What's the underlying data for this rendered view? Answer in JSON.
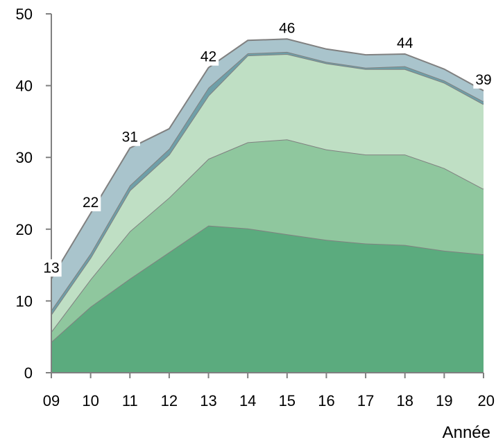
{
  "chart_data": {
    "type": "area",
    "stacked": true,
    "title": "",
    "xlabel": "Année",
    "ylabel": "",
    "ylim": [
      0,
      50
    ],
    "yticks": [
      "0",
      "10",
      "20",
      "30",
      "40",
      "50"
    ],
    "categories": [
      "09",
      "10",
      "11",
      "12",
      "13",
      "14",
      "15",
      "16",
      "17",
      "18",
      "19",
      "20"
    ],
    "grid": false,
    "legend": "none",
    "series": [
      {
        "color": "#5bab7e",
        "values": [
          4.3,
          9.2,
          13.1,
          16.8,
          20.5,
          20.1,
          19.3,
          18.5,
          18.0,
          17.8,
          17.0,
          16.5
        ]
      },
      {
        "color": "#8fc79e",
        "values": [
          1.4,
          3.8,
          6.6,
          7.6,
          9.3,
          12.0,
          13.2,
          12.6,
          12.4,
          12.6,
          11.5,
          9.1
        ]
      },
      {
        "color": "#bfdfc4",
        "values": [
          2.4,
          3.0,
          5.7,
          6.0,
          8.8,
          12.1,
          11.9,
          12.0,
          11.9,
          11.9,
          11.9,
          11.8
        ]
      },
      {
        "color": "#6e9fa8",
        "values": [
          0.6,
          0.6,
          0.7,
          0.8,
          1.1,
          0.3,
          0.3,
          0.2,
          0.2,
          0.4,
          0.3,
          0.4
        ]
      },
      {
        "color": "#a9c4cc",
        "values": [
          4.4,
          5.6,
          5.2,
          2.8,
          2.8,
          1.8,
          1.8,
          1.8,
          1.8,
          1.7,
          1.6,
          1.5
        ]
      }
    ],
    "totals": [
      {
        "x": "09",
        "label": "13"
      },
      {
        "x": "10",
        "label": "22"
      },
      {
        "x": "11",
        "label": "31"
      },
      {
        "x": "13",
        "label": "42"
      },
      {
        "x": "15",
        "label": "46"
      },
      {
        "x": "18",
        "label": "44"
      },
      {
        "x": "20",
        "label": "39"
      }
    ],
    "colors": {
      "outline": "#808080",
      "axis": "#808080"
    }
  }
}
